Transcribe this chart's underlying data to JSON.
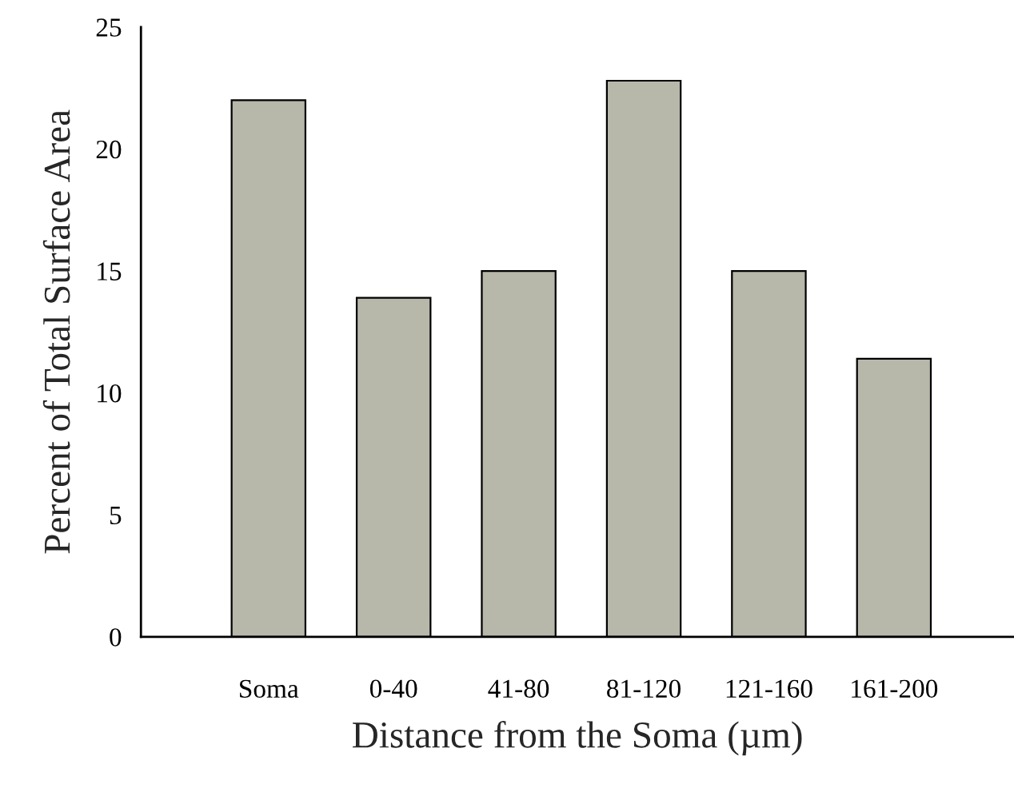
{
  "chart_data": {
    "type": "bar",
    "xlabel": "Distance from the Soma (µm)",
    "ylabel": "Percent of Total Surface Area",
    "categories": [
      "Soma",
      "0-40",
      "41-80",
      "81-120",
      "121-160",
      "161-200"
    ],
    "values": [
      22.0,
      13.9,
      15.0,
      22.8,
      15.0,
      11.4
    ],
    "color": "#b7b7aa",
    "ylim": [
      0,
      25
    ],
    "yticks": [
      0,
      5,
      10,
      15,
      20,
      25
    ],
    "grid": false
  }
}
